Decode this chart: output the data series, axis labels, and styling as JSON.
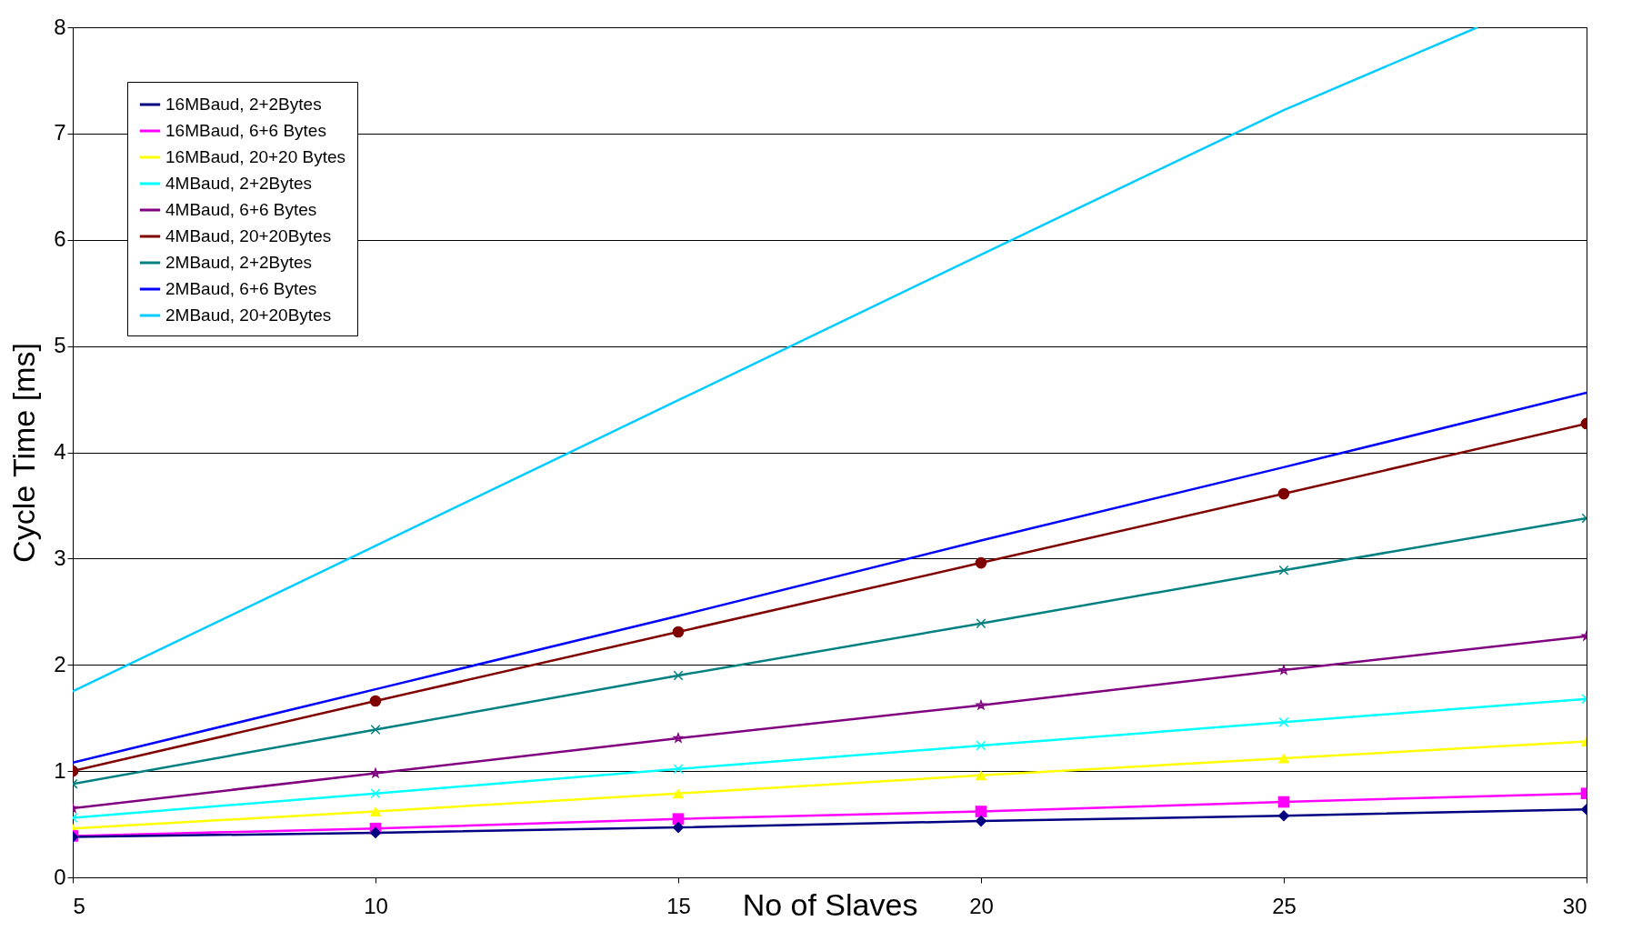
{
  "chart_data": {
    "type": "line",
    "xlabel": "No of Slaves",
    "ylabel": "Cycle Time [ms]",
    "x": [
      5,
      10,
      15,
      20,
      25,
      30
    ],
    "xlim": [
      5,
      30
    ],
    "xticks": [
      5,
      10,
      15,
      20,
      25,
      30
    ],
    "ylim": [
      0,
      8
    ],
    "yticks": [
      0,
      1,
      2,
      3,
      4,
      5,
      6,
      7,
      8
    ],
    "grid": "y",
    "legend": "top left",
    "line_style": "solid",
    "series": [
      {
        "name": "16MBaud, 2+2Bytes",
        "color": "#000080",
        "marker": "diamond",
        "values": [
          0.38,
          0.42,
          0.47,
          0.53,
          0.58,
          0.64
        ]
      },
      {
        "name": "16MBaud, 6+6 Bytes",
        "color": "#ff00ff",
        "marker": "square",
        "values": [
          0.39,
          0.46,
          0.55,
          0.62,
          0.71,
          0.79
        ]
      },
      {
        "name": "16MBaud, 20+20 Bytes",
        "color": "#ffff00",
        "marker": "triangle",
        "values": [
          0.46,
          0.62,
          0.79,
          0.96,
          1.12,
          1.28
        ]
      },
      {
        "name": "4MBaud, 2+2Bytes",
        "color": "#00ffff",
        "marker": "cross",
        "values": [
          0.56,
          0.79,
          1.02,
          1.24,
          1.46,
          1.68
        ]
      },
      {
        "name": "4MBaud, 6+6 Bytes",
        "color": "#800080",
        "marker": "star",
        "values": [
          0.65,
          0.98,
          1.31,
          1.62,
          1.95,
          2.27
        ]
      },
      {
        "name": "4MBaud, 20+20Bytes",
        "color": "#800000",
        "marker": "circle",
        "values": [
          1.0,
          1.66,
          2.31,
          2.96,
          3.61,
          4.27
        ]
      },
      {
        "name": "2MBaud, 2+2Bytes",
        "color": "#008080",
        "marker": "cross",
        "values": [
          0.88,
          1.39,
          1.9,
          2.39,
          2.89,
          3.38
        ]
      },
      {
        "name": "2MBaud, 6+6 Bytes",
        "color": "#0000ff",
        "marker": "none",
        "values": [
          1.08,
          1.77,
          2.46,
          3.17,
          3.86,
          4.56
        ]
      },
      {
        "name": "2MBaud, 20+20Bytes",
        "color": "#00ccff",
        "marker": "none",
        "x": [
          5,
          10,
          15,
          20,
          25,
          28.2
        ],
        "values": [
          1.75,
          3.12,
          4.49,
          5.86,
          7.22,
          8
        ]
      }
    ]
  }
}
